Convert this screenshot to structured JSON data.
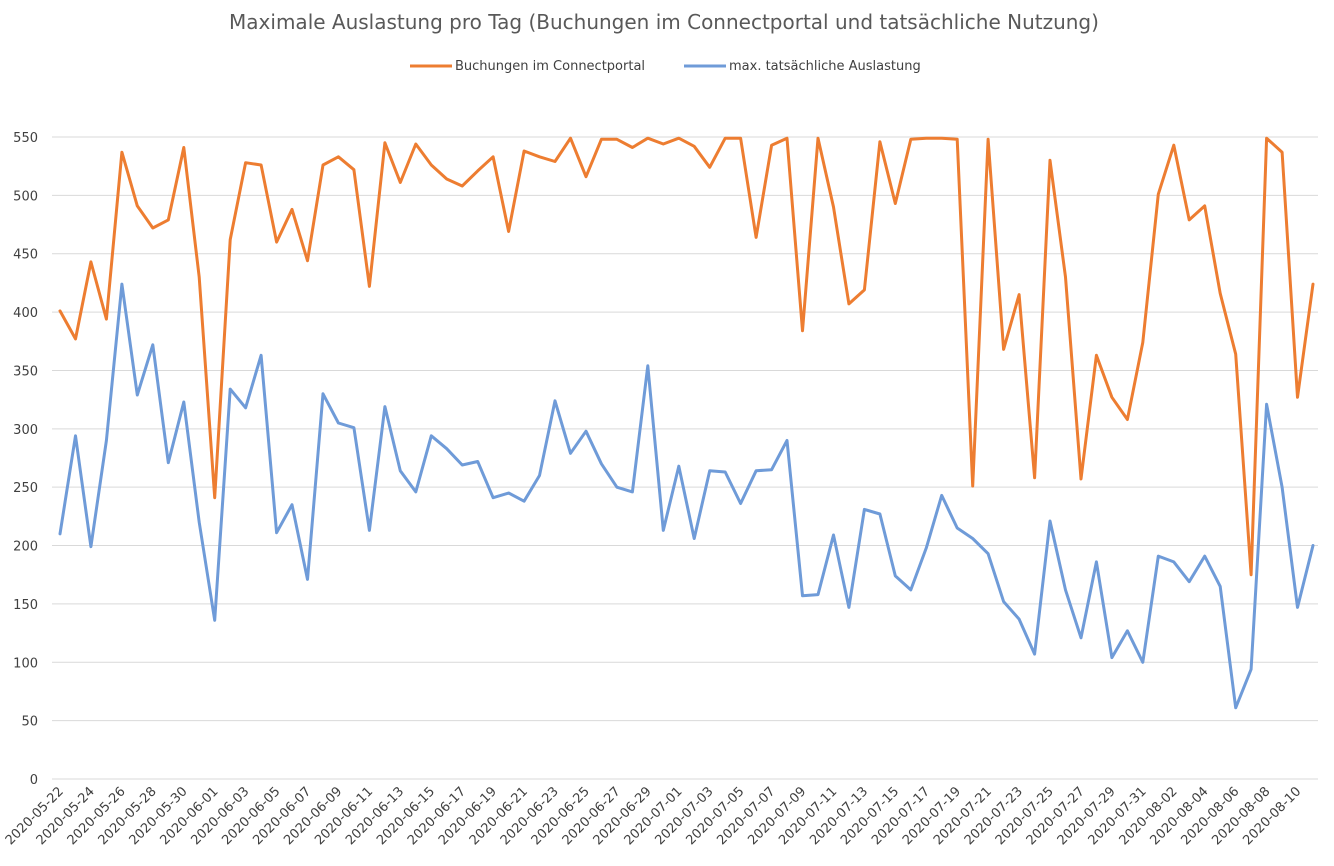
{
  "chart_data": {
    "type": "line",
    "title": "Maximale Auslastung pro Tag (Buchungen im Connectportal und tatsächliche Nutzung)",
    "xlabel": "",
    "ylabel": "",
    "ylim": [
      0,
      550
    ],
    "yticks": [
      0,
      50,
      100,
      150,
      200,
      250,
      300,
      350,
      400,
      450,
      500,
      550
    ],
    "grid": true,
    "legend_position": "top",
    "x": [
      "2020-05-22",
      "2020-05-23",
      "2020-05-24",
      "2020-05-25",
      "2020-05-26",
      "2020-05-27",
      "2020-05-28",
      "2020-05-29",
      "2020-05-30",
      "2020-05-31",
      "2020-06-01",
      "2020-06-02",
      "2020-06-03",
      "2020-06-04",
      "2020-06-05",
      "2020-06-06",
      "2020-06-07",
      "2020-06-08",
      "2020-06-09",
      "2020-06-10",
      "2020-06-11",
      "2020-06-12",
      "2020-06-13",
      "2020-06-14",
      "2020-06-15",
      "2020-06-16",
      "2020-06-17",
      "2020-06-18",
      "2020-06-19",
      "2020-06-20",
      "2020-06-21",
      "2020-06-22",
      "2020-06-23",
      "2020-06-24",
      "2020-06-25",
      "2020-06-26",
      "2020-06-27",
      "2020-06-28",
      "2020-06-29",
      "2020-06-30",
      "2020-07-01",
      "2020-07-02",
      "2020-07-03",
      "2020-07-04",
      "2020-07-05",
      "2020-07-06",
      "2020-07-07",
      "2020-07-08",
      "2020-07-09",
      "2020-07-10",
      "2020-07-11",
      "2020-07-12",
      "2020-07-13",
      "2020-07-14",
      "2020-07-15",
      "2020-07-16",
      "2020-07-17",
      "2020-07-18",
      "2020-07-19",
      "2020-07-20",
      "2020-07-21",
      "2020-07-22",
      "2020-07-23",
      "2020-07-24",
      "2020-07-25",
      "2020-07-26",
      "2020-07-27",
      "2020-07-28",
      "2020-07-29",
      "2020-07-30",
      "2020-07-31",
      "2020-08-01",
      "2020-08-02",
      "2020-08-03",
      "2020-08-04",
      "2020-08-05",
      "2020-08-06",
      "2020-08-07",
      "2020-08-08",
      "2020-08-09",
      "2020-08-10",
      "2020-08-11"
    ],
    "tick_labels": [
      "2020-05-22",
      "2020-05-24",
      "2020-05-26",
      "2020-05-28",
      "2020-05-30",
      "2020-06-01",
      "2020-06-03",
      "2020-06-05",
      "2020-06-07",
      "2020-06-09",
      "2020-06-11",
      "2020-06-13",
      "2020-06-15",
      "2020-06-17",
      "2020-06-19",
      "2020-06-21",
      "2020-06-23",
      "2020-06-25",
      "2020-06-27",
      "2020-06-29",
      "2020-07-01",
      "2020-07-03",
      "2020-07-05",
      "2020-07-07",
      "2020-07-09",
      "2020-07-11",
      "2020-07-13",
      "2020-07-15",
      "2020-07-17",
      "2020-07-19",
      "2020-07-21",
      "2020-07-23",
      "2020-07-25",
      "2020-07-27",
      "2020-07-29",
      "2020-07-31",
      "2020-08-02",
      "2020-08-04",
      "2020-08-06",
      "2020-08-08",
      "2020-08-10"
    ],
    "series": [
      {
        "name": "Buchungen im Connectportal",
        "color": "#ED7D31",
        "values": [
          401,
          377,
          443,
          394,
          537,
          491,
          472,
          479,
          541,
          430,
          241,
          462,
          528,
          526,
          460,
          488,
          444,
          526,
          533,
          522,
          422,
          545,
          511,
          544,
          526,
          514,
          508,
          521,
          533,
          469,
          538,
          533,
          529,
          549,
          516,
          548,
          548,
          541,
          549,
          544,
          549,
          542,
          524,
          549,
          549,
          464,
          543,
          549,
          384,
          549,
          490,
          407,
          419,
          546,
          493,
          548,
          549,
          549,
          548,
          251,
          548,
          368,
          415,
          258,
          530,
          430,
          257,
          363,
          327,
          308,
          374,
          501,
          543,
          479,
          491,
          416,
          364,
          175,
          549,
          537,
          327,
          424
        ]
      },
      {
        "name": "max. tatsächliche Auslastung",
        "color": "#6F9BD8",
        "values": [
          210,
          294,
          199,
          290,
          424,
          329,
          372,
          271,
          323,
          220,
          136,
          334,
          318,
          363,
          211,
          235,
          171,
          330,
          305,
          301,
          213,
          319,
          264,
          246,
          294,
          283,
          269,
          272,
          241,
          245,
          238,
          260,
          324,
          279,
          298,
          270,
          250,
          246,
          354,
          213,
          268,
          206,
          264,
          263,
          236,
          264,
          265,
          290,
          157,
          158,
          209,
          147,
          231,
          227,
          174,
          162,
          198,
          243,
          215,
          206,
          193,
          152,
          137,
          107,
          221,
          162,
          121,
          186,
          104,
          127,
          100,
          191,
          186,
          169,
          191,
          165,
          61,
          94,
          321,
          250,
          147,
          200
        ]
      }
    ]
  }
}
